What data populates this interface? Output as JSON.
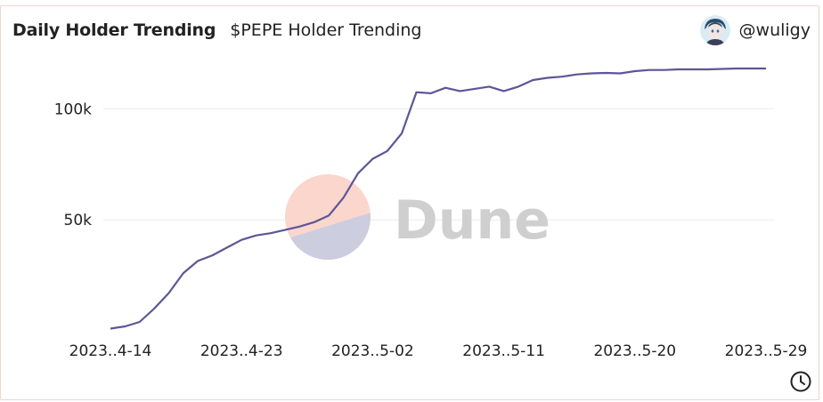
{
  "header": {
    "title": "Daily Holder Trending",
    "subtitle": "$PEPE Holder Trending",
    "author": "@wuligy"
  },
  "watermark": {
    "text": "Dune"
  },
  "colors": {
    "line": "#5a5796",
    "grid": "#ececec",
    "watermark_top": "#fbd6cd",
    "watermark_bottom": "#cdcde0"
  },
  "icons": {
    "avatar": "avatar-icon",
    "clock": "clock-icon"
  },
  "chart_data": {
    "type": "line",
    "x": [
      "2023-04-14",
      "2023-04-15",
      "2023-04-16",
      "2023-04-17",
      "2023-04-18",
      "2023-04-19",
      "2023-04-20",
      "2023-04-21",
      "2023-04-22",
      "2023-04-23",
      "2023-04-24",
      "2023-04-25",
      "2023-04-26",
      "2023-04-27",
      "2023-04-28",
      "2023-04-29",
      "2023-04-30",
      "2023-05-01",
      "2023-05-02",
      "2023-05-03",
      "2023-05-04",
      "2023-05-05",
      "2023-05-06",
      "2023-05-07",
      "2023-05-08",
      "2023-05-09",
      "2023-05-10",
      "2023-05-11",
      "2023-05-12",
      "2023-05-13",
      "2023-05-14",
      "2023-05-15",
      "2023-05-16",
      "2023-05-17",
      "2023-05-18",
      "2023-05-19",
      "2023-05-20",
      "2023-05-21",
      "2023-05-22",
      "2023-05-23",
      "2023-05-24",
      "2023-05-25",
      "2023-05-26",
      "2023-05-27",
      "2023-05-28",
      "2023-05-29"
    ],
    "series": [
      {
        "values": [
          1000,
          2000,
          4000,
          10000,
          17000,
          26000,
          31500,
          34000,
          37500,
          41000,
          43000,
          44000,
          45500,
          47000,
          49000,
          52000,
          60000,
          71000,
          77500,
          81000,
          89000,
          107500,
          107000,
          109500,
          108000,
          109000,
          110000,
          108000,
          110000,
          113000,
          114000,
          114500,
          115500,
          116000,
          116200,
          116000,
          117000,
          117500,
          117500,
          117800,
          117800,
          117800,
          118000,
          118200,
          118200,
          118200
        ]
      }
    ],
    "x_ticks": [
      "2023..4-14",
      "2023..4-23",
      "2023..5-02",
      "2023..5-11",
      "2023..5-20",
      "2023..5-29"
    ],
    "y_ticks": [
      {
        "value": 50000,
        "label": "50k"
      },
      {
        "value": 100000,
        "label": "100k"
      }
    ],
    "xlabel": "",
    "ylabel": "",
    "ylim": [
      0,
      125000
    ],
    "grid": true,
    "legend": "none"
  }
}
